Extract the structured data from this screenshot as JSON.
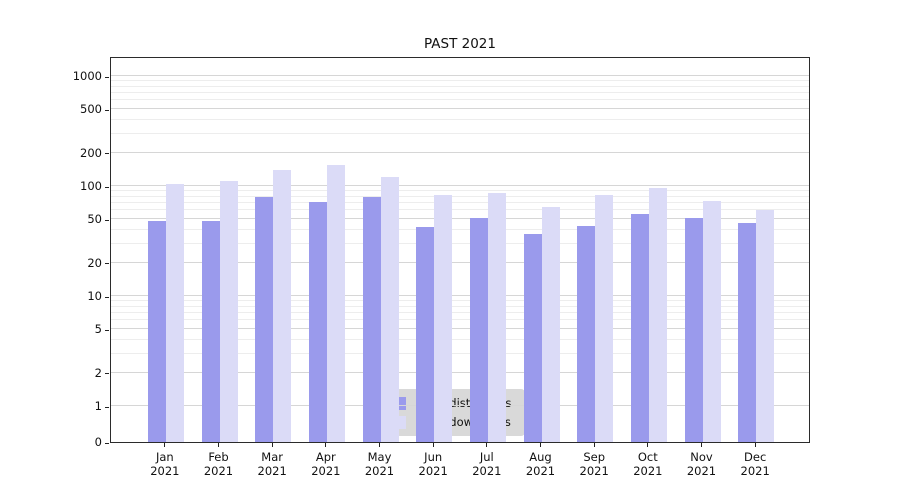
{
  "chart_data": {
    "type": "bar",
    "title": "PAST 2021",
    "categories": [
      {
        "month": "Jan",
        "year": "2021"
      },
      {
        "month": "Feb",
        "year": "2021"
      },
      {
        "month": "Mar",
        "year": "2021"
      },
      {
        "month": "Apr",
        "year": "2021"
      },
      {
        "month": "May",
        "year": "2021"
      },
      {
        "month": "Jun",
        "year": "2021"
      },
      {
        "month": "Jul",
        "year": "2021"
      },
      {
        "month": "Aug",
        "year": "2021"
      },
      {
        "month": "Sep",
        "year": "2021"
      },
      {
        "month": "Oct",
        "year": "2021"
      },
      {
        "month": "Nov",
        "year": "2021"
      },
      {
        "month": "Dec",
        "year": "2021"
      }
    ],
    "series": [
      {
        "name": "Nb of distinct IPs",
        "color": "#9a9aec",
        "values": [
          48,
          48,
          80,
          72,
          80,
          42,
          51,
          37,
          43,
          56,
          51,
          46
        ]
      },
      {
        "name": "Nb of downloads",
        "color": "#dbdbf7",
        "values": [
          105,
          110,
          140,
          155,
          120,
          82,
          86,
          64,
          82,
          95,
          73,
          61
        ]
      }
    ],
    "y_ticks": [
      0,
      1,
      2,
      5,
      10,
      20,
      50,
      100,
      200,
      500,
      1000
    ],
    "y_scale": "log",
    "ylim": [
      0,
      1500
    ],
    "grid": true,
    "legend_position": "bottom-center"
  }
}
